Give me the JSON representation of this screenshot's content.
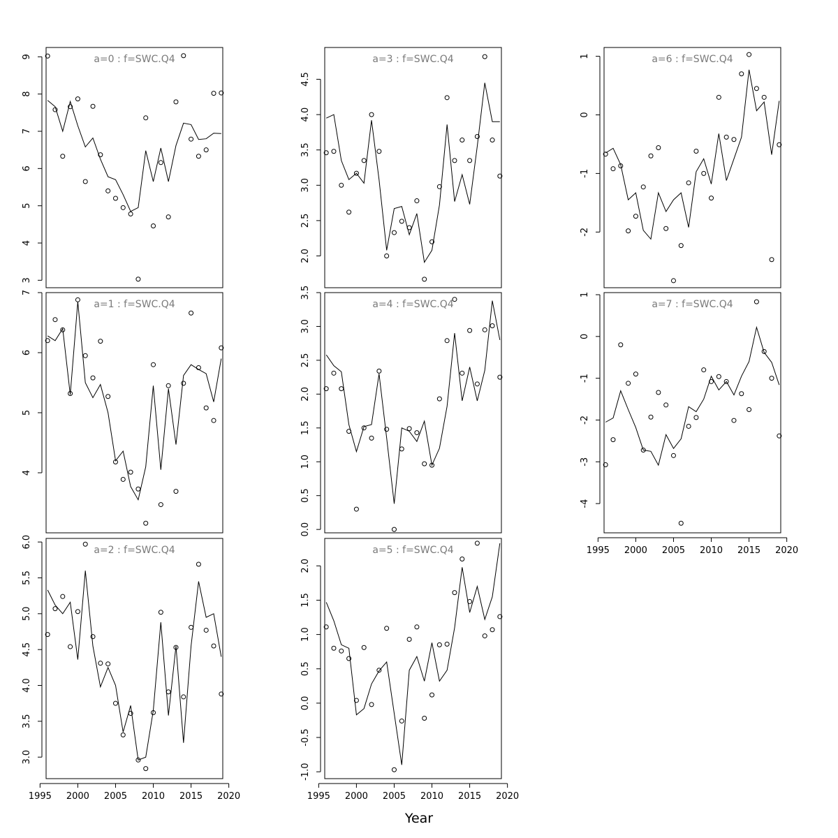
{
  "figure": {
    "xlabel": "Year"
  },
  "chart_data": [
    {
      "type": "scatter+line",
      "title": "a=0  :  f=SWC.Q4",
      "xlim": [
        1995.8,
        2019.2
      ],
      "ylim": [
        2.8,
        9.25
      ],
      "xticks": [
        1995,
        2000,
        2005,
        2010,
        2015,
        2020
      ],
      "yticks": [
        3,
        4,
        5,
        6,
        7,
        8,
        9
      ],
      "x": [
        1996,
        1997,
        1998,
        1999,
        2000,
        2001,
        2002,
        2003,
        2004,
        2005,
        2006,
        2007,
        2008,
        2009,
        2010,
        2011,
        2012,
        2013,
        2014,
        2015,
        2016,
        2017,
        2018,
        2019
      ],
      "points": [
        9.02,
        7.58,
        6.33,
        7.66,
        7.87,
        5.65,
        7.67,
        6.37,
        5.4,
        5.2,
        4.95,
        4.78,
        3.03,
        7.36,
        4.46,
        6.16,
        4.7,
        7.79,
        9.03,
        6.79,
        6.33,
        6.5,
        8.02,
        8.03
      ],
      "line": [
        7.83,
        7.66,
        7.0,
        7.8,
        7.15,
        6.58,
        6.82,
        6.25,
        5.78,
        5.7,
        5.3,
        4.85,
        4.95,
        6.48,
        5.65,
        6.55,
        5.65,
        6.62,
        7.22,
        7.18,
        6.78,
        6.8,
        6.95,
        6.94
      ]
    },
    {
      "type": "scatter+line",
      "title": "a=1  :  f=SWC.Q4",
      "xlim": [
        1995.8,
        2019.2
      ],
      "ylim": [
        3.0,
        7.0
      ],
      "xticks": [
        1995,
        2000,
        2005,
        2010,
        2015,
        2020
      ],
      "yticks": [
        4,
        5,
        6,
        7
      ],
      "x": [
        1996,
        1997,
        1998,
        1999,
        2000,
        2001,
        2002,
        2003,
        2004,
        2005,
        2006,
        2007,
        2008,
        2009,
        2010,
        2011,
        2012,
        2013,
        2014,
        2015,
        2016,
        2017,
        2018,
        2019
      ],
      "points": [
        6.2,
        6.55,
        6.38,
        5.32,
        6.88,
        5.95,
        5.58,
        6.19,
        5.27,
        4.18,
        3.89,
        4.01,
        3.73,
        3.16,
        5.8,
        3.47,
        5.45,
        3.69,
        5.49,
        6.66,
        5.75,
        5.08,
        4.87,
        6.08
      ],
      "line": [
        6.28,
        6.2,
        6.4,
        5.3,
        6.85,
        5.5,
        5.25,
        5.47,
        5.0,
        4.2,
        4.36,
        3.77,
        3.55,
        4.1,
        5.45,
        4.05,
        5.4,
        4.47,
        5.62,
        5.8,
        5.72,
        5.65,
        5.18,
        5.9
      ]
    },
    {
      "type": "scatter+line",
      "title": "a=2  :  f=SWC.Q4",
      "xlim": [
        1995.8,
        2019.2
      ],
      "ylim": [
        2.7,
        6.05
      ],
      "xticks": [
        1995,
        2000,
        2005,
        2010,
        2015,
        2020
      ],
      "yticks": [
        3.0,
        3.5,
        4.0,
        4.5,
        5.0,
        5.5,
        6.0
      ],
      "x": [
        1996,
        1997,
        1998,
        1999,
        2000,
        2001,
        2002,
        2003,
        2004,
        2005,
        2006,
        2007,
        2008,
        2009,
        2010,
        2011,
        2012,
        2013,
        2014,
        2015,
        2016,
        2017,
        2018,
        2019
      ],
      "points": [
        4.71,
        5.07,
        5.24,
        4.54,
        5.03,
        5.97,
        4.68,
        4.31,
        4.3,
        3.75,
        3.31,
        3.61,
        2.96,
        2.84,
        3.62,
        5.02,
        3.91,
        4.53,
        3.84,
        4.81,
        5.69,
        4.77,
        4.55,
        3.88
      ],
      "line": [
        5.33,
        5.12,
        5.0,
        5.16,
        4.36,
        5.6,
        4.55,
        3.98,
        4.25,
        4.0,
        3.35,
        3.72,
        2.96,
        3.0,
        3.65,
        4.88,
        3.58,
        4.55,
        3.2,
        4.55,
        5.45,
        4.95,
        5.0,
        4.4
      ]
    },
    {
      "type": "scatter+line",
      "title": "a=3  :  f=SWC.Q4",
      "xlim": [
        1995.8,
        2019.2
      ],
      "ylim": [
        1.55,
        4.95
      ],
      "xticks": [
        1995,
        2000,
        2005,
        2010,
        2015,
        2020
      ],
      "yticks": [
        2.0,
        2.5,
        3.0,
        3.5,
        4.0,
        4.5
      ],
      "x": [
        1996,
        1997,
        1998,
        1999,
        2000,
        2001,
        2002,
        2003,
        2004,
        2005,
        2006,
        2007,
        2008,
        2009,
        2010,
        2011,
        2012,
        2013,
        2014,
        2015,
        2016,
        2017,
        2018,
        2019
      ],
      "points": [
        3.46,
        3.48,
        3.0,
        2.62,
        3.17,
        3.35,
        4.0,
        3.48,
        2.0,
        2.33,
        2.49,
        2.4,
        2.78,
        1.67,
        2.2,
        2.98,
        4.24,
        3.35,
        3.64,
        3.35,
        3.69,
        4.82,
        3.64,
        3.13
      ],
      "line": [
        3.95,
        4.0,
        3.35,
        3.08,
        3.17,
        3.03,
        3.92,
        3.08,
        2.08,
        2.67,
        2.7,
        2.3,
        2.6,
        1.91,
        2.08,
        2.72,
        3.86,
        2.77,
        3.15,
        2.73,
        3.55,
        4.45,
        3.9,
        3.9
      ]
    },
    {
      "type": "scatter+line",
      "title": "a=4  :  f=SWC.Q4",
      "xlim": [
        1995.8,
        2019.2
      ],
      "ylim": [
        -0.05,
        3.5
      ],
      "xticks": [
        1995,
        2000,
        2005,
        2010,
        2015,
        2020
      ],
      "yticks": [
        0.0,
        0.5,
        1.0,
        1.5,
        2.0,
        2.5,
        3.0,
        3.5
      ],
      "x": [
        1996,
        1997,
        1998,
        1999,
        2000,
        2001,
        2002,
        2003,
        2004,
        2005,
        2006,
        2007,
        2008,
        2009,
        2010,
        2011,
        2012,
        2013,
        2014,
        2015,
        2016,
        2017,
        2018,
        2019
      ],
      "points": [
        2.08,
        2.31,
        2.08,
        1.45,
        0.3,
        1.5,
        1.35,
        2.34,
        1.48,
        0.0,
        1.19,
        1.49,
        1.43,
        0.97,
        0.95,
        1.93,
        2.79,
        3.4,
        2.31,
        2.94,
        2.15,
        2.95,
        3.01,
        2.25
      ],
      "line": [
        2.58,
        2.42,
        2.33,
        1.55,
        1.15,
        1.52,
        1.55,
        2.3,
        1.35,
        0.38,
        1.5,
        1.45,
        1.3,
        1.6,
        0.95,
        1.2,
        1.82,
        2.9,
        1.9,
        2.4,
        1.9,
        2.35,
        3.38,
        2.8
      ]
    },
    {
      "type": "scatter+line",
      "title": "a=5  :  f=SWC.Q4",
      "xlim": [
        1995.8,
        2019.2
      ],
      "ylim": [
        -1.1,
        2.4
      ],
      "xticks": [
        1995,
        2000,
        2005,
        2010,
        2015,
        2020
      ],
      "yticks": [
        -1.0,
        -0.5,
        0.0,
        0.5,
        1.0,
        1.5,
        2.0
      ],
      "x": [
        1996,
        1997,
        1998,
        1999,
        2000,
        2001,
        2002,
        2003,
        2004,
        2005,
        2006,
        2007,
        2008,
        2009,
        2010,
        2011,
        2012,
        2013,
        2014,
        2015,
        2016,
        2017,
        2018,
        2019
      ],
      "points": [
        1.11,
        0.8,
        0.76,
        0.65,
        0.04,
        0.81,
        -0.02,
        0.48,
        1.09,
        -0.97,
        -0.26,
        0.93,
        1.11,
        -0.22,
        0.12,
        0.85,
        0.86,
        1.61,
        2.1,
        1.48,
        2.33,
        0.98,
        1.07,
        1.26
      ],
      "line": [
        1.47,
        1.2,
        0.85,
        0.8,
        -0.17,
        -0.08,
        0.28,
        0.47,
        0.6,
        -0.15,
        -0.9,
        0.48,
        0.68,
        0.32,
        0.88,
        0.32,
        0.48,
        1.1,
        1.98,
        1.32,
        1.7,
        1.22,
        1.55,
        2.33
      ]
    },
    {
      "type": "scatter+line",
      "title": "a=6  :  f=SWC.Q4",
      "xlim": [
        1995.8,
        2019.2
      ],
      "ylim": [
        -2.95,
        1.15
      ],
      "xticks": [
        1995,
        2000,
        2005,
        2010,
        2015,
        2020
      ],
      "yticks": [
        -2,
        -1,
        0,
        1
      ],
      "x": [
        1996,
        1997,
        1998,
        1999,
        2000,
        2001,
        2002,
        2003,
        2004,
        2005,
        2006,
        2007,
        2008,
        2009,
        2010,
        2011,
        2012,
        2013,
        2014,
        2015,
        2016,
        2017,
        2018,
        2019
      ],
      "points": [
        -0.67,
        -0.92,
        -0.87,
        -1.98,
        -1.73,
        -1.23,
        -0.7,
        -0.56,
        -1.94,
        -2.83,
        -2.23,
        -1.16,
        -0.62,
        -1.0,
        -1.42,
        0.3,
        -0.38,
        -0.42,
        0.7,
        1.03,
        0.45,
        0.3,
        -2.47,
        -0.51
      ],
      "line": [
        -0.65,
        -0.57,
        -0.85,
        -1.45,
        -1.33,
        -1.97,
        -2.12,
        -1.33,
        -1.65,
        -1.45,
        -1.33,
        -1.92,
        -0.97,
        -0.75,
        -1.18,
        -0.32,
        -1.12,
        -0.75,
        -0.38,
        0.77,
        0.07,
        0.22,
        -0.68,
        0.24
      ]
    },
    {
      "type": "scatter+line",
      "title": "a=7  :  f=SWC.Q4",
      "xlim": [
        1995.8,
        2019.2
      ],
      "ylim": [
        -4.7,
        1.05
      ],
      "xticks": [
        1995,
        2000,
        2005,
        2010,
        2015,
        2020
      ],
      "yticks": [
        -4,
        -3,
        -2,
        -1,
        0,
        1
      ],
      "x": [
        1996,
        1997,
        1998,
        1999,
        2000,
        2001,
        2002,
        2003,
        2004,
        2005,
        2006,
        2007,
        2008,
        2009,
        2010,
        2011,
        2012,
        2013,
        2014,
        2015,
        2016,
        2017,
        2018,
        2019
      ],
      "points": [
        -3.07,
        -2.47,
        -0.2,
        -1.12,
        -0.9,
        -2.72,
        -1.93,
        -1.34,
        -1.64,
        -2.85,
        -4.47,
        -2.15,
        -1.94,
        -0.8,
        -1.08,
        -0.96,
        -1.08,
        -2.01,
        -1.37,
        -1.75,
        0.83,
        -0.36,
        -1.0,
        -2.38
      ],
      "line": [
        -2.05,
        -1.95,
        -1.3,
        -1.75,
        -2.18,
        -2.72,
        -2.75,
        -3.08,
        -2.35,
        -2.68,
        -2.45,
        -1.68,
        -1.8,
        -1.5,
        -0.95,
        -1.28,
        -1.08,
        -1.4,
        -0.95,
        -0.6,
        0.22,
        -0.38,
        -0.62,
        -1.16
      ]
    }
  ]
}
